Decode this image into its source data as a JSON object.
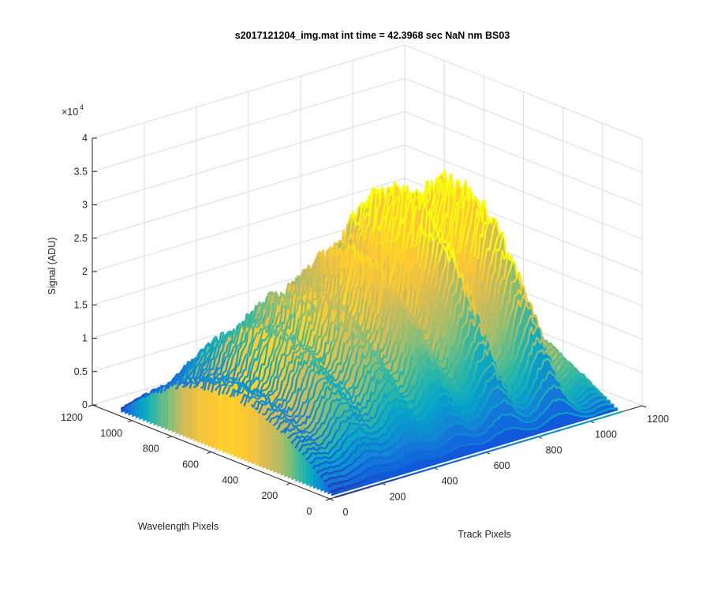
{
  "figure": {
    "title": "s2017121204_img.mat int time = 42.3968 sec  NaN nm BS03",
    "exponent_label": "×10",
    "exponent_power": "4"
  },
  "chart_data": {
    "type": "surface",
    "title": "s2017121204_img.mat int time = 42.3968 sec  NaN nm BS03",
    "xlabel": "Track Pixels",
    "ylabel": "Wavelength Pixels",
    "zlabel": "Signal (ADU)",
    "xlim": [
      0,
      1200
    ],
    "ylim": [
      0,
      1200
    ],
    "zlim": [
      0,
      40000
    ],
    "z_multiplier": "×10^4",
    "xticks": [
      "0",
      "200",
      "400",
      "600",
      "800",
      "1000",
      "1200"
    ],
    "yticks": [
      "0",
      "200",
      "400",
      "600",
      "800",
      "1000",
      "1200"
    ],
    "zticks": [
      "0",
      "0.5",
      "1",
      "1.5",
      "2",
      "2.5",
      "3",
      "3.5",
      "4"
    ],
    "grid": true,
    "colormap": "parula",
    "colormap_colors": [
      "#352a87",
      "#0f5cdd",
      "#1481d6",
      "#06a4ca",
      "#2eb7a4",
      "#87bf77",
      "#d1bb59",
      "#fec832",
      "#f9fb0e"
    ],
    "peaks_track_px": [
      40,
      200,
      360,
      520,
      700,
      900,
      1080
    ],
    "peak_max_signal_adu": [
      10000,
      17000,
      21000,
      25000,
      33000,
      32000,
      9000
    ],
    "wavelength_extent_px": [
      0,
      1100
    ]
  }
}
